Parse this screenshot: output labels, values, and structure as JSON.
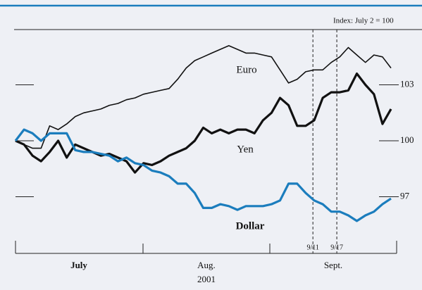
{
  "chart_data": {
    "type": "line",
    "subtitle": "Index: July 2 = 100",
    "categories": [
      null,
      null,
      null,
      null,
      null,
      null,
      null,
      null,
      null,
      null,
      null,
      null,
      null,
      null,
      null,
      null,
      null,
      null,
      null,
      null,
      null,
      null,
      null,
      null,
      null,
      null,
      null,
      null,
      null,
      null,
      null,
      null,
      null,
      null,
      null,
      null,
      null,
      null,
      null,
      null,
      null,
      null,
      null,
      null,
      null
    ],
    "month_labels": [
      "July",
      "Aug.",
      "Sept."
    ],
    "year_label": "2001",
    "series": [
      {
        "name": "Euro",
        "color": "#111111",
        "width": 1.6,
        "values": [
          100,
          99.8,
          99.6,
          99.6,
          100.8,
          100.6,
          100.9,
          101.3,
          101.5,
          101.6,
          101.7,
          101.9,
          102.0,
          102.2,
          102.3,
          102.5,
          102.6,
          102.7,
          102.8,
          103.3,
          103.9,
          104.3,
          104.5,
          104.7,
          104.9,
          105.1,
          104.9,
          104.7,
          104.7,
          104.6,
          104.5,
          103.8,
          103.1,
          103.3,
          103.7,
          103.8,
          103.8,
          104.2,
          104.5,
          105.0,
          104.6,
          104.2,
          104.6,
          104.5,
          103.9
        ]
      },
      {
        "name": "Yen",
        "color": "#111111",
        "width": 3.2,
        "values": [
          100,
          99.8,
          99.2,
          98.9,
          99.4,
          100,
          99.1,
          99.8,
          99.6,
          99.4,
          99.2,
          99.3,
          99.1,
          98.9,
          98.3,
          98.8,
          98.7,
          98.9,
          99.2,
          99.4,
          99.6,
          100,
          100.7,
          100.4,
          100.6,
          100.4,
          100.6,
          100.6,
          100.4,
          101.1,
          101.5,
          102.3,
          101.9,
          100.8,
          100.8,
          101.1,
          102.3,
          102.6,
          102.6,
          102.7,
          103.6,
          103.0,
          102.5,
          100.9,
          101.7
        ]
      },
      {
        "name": "Dollar",
        "color": "#1b7dbd",
        "width": 3.2,
        "values": [
          100,
          100.6,
          100.4,
          100,
          100.4,
          100.4,
          100.4,
          99.5,
          99.4,
          99.4,
          99.3,
          99.2,
          98.9,
          99.1,
          98.8,
          98.7,
          98.4,
          98.3,
          98.1,
          97.7,
          97.7,
          97.2,
          96.4,
          96.4,
          96.6,
          96.5,
          96.3,
          96.5,
          96.5,
          96.5,
          96.6,
          96.8,
          97.7,
          97.7,
          97.2,
          96.8,
          96.6,
          96.2,
          96.2,
          96.0,
          95.7,
          96.0,
          96.2,
          96.6,
          96.9
        ]
      }
    ],
    "annotations": [
      {
        "label": "9/11",
        "at": 34.85
      },
      {
        "label": "9/17",
        "at": 37.65
      }
    ],
    "ylim": [
      94,
      106
    ],
    "yticks": [
      97,
      100,
      103
    ],
    "grid": false
  }
}
